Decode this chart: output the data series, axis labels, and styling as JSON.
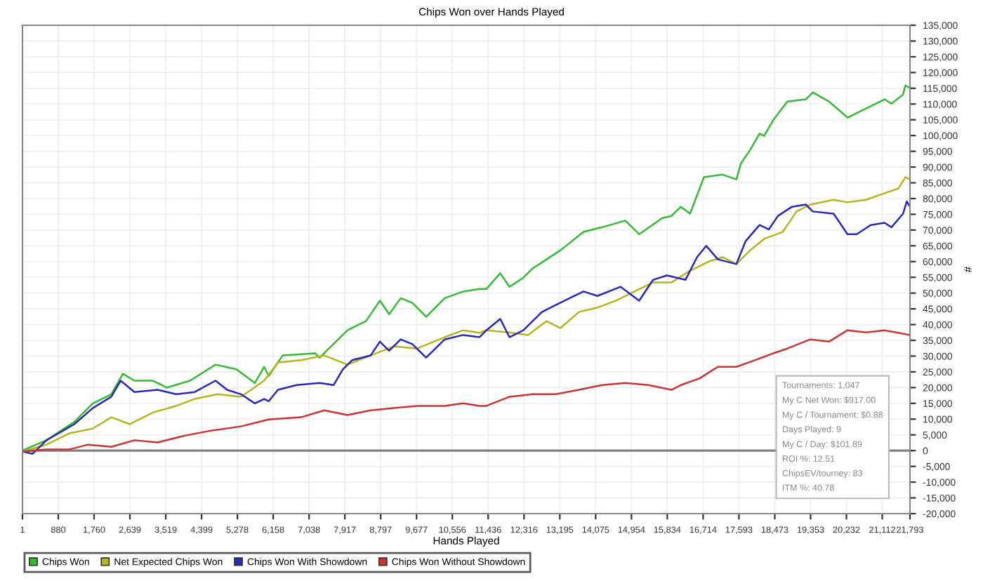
{
  "chart_data": {
    "type": "line",
    "title": "Chips Won over Hands Played",
    "xlabel": "Hands Played",
    "ylabel": "#",
    "xlim": [
      1,
      21793
    ],
    "xticks": [
      1,
      880,
      {
        "value": 1760,
        "label": "1,760"
      },
      {
        "value": 2639,
        "label": "2,639"
      },
      {
        "value": 3519,
        "label": "3,519"
      },
      {
        "value": 4399,
        "label": "4,399"
      },
      {
        "value": 5278,
        "label": "5,278"
      },
      {
        "value": 6158,
        "label": "6,158"
      },
      {
        "value": 7038,
        "label": "7,038"
      },
      {
        "value": 7917,
        "label": "7,917"
      },
      {
        "value": 8797,
        "label": "8,797"
      },
      {
        "value": 9677,
        "label": "9,677"
      },
      {
        "value": 10556,
        "label": "10,556"
      },
      {
        "value": 11436,
        "label": "11,436"
      },
      {
        "value": 12316,
        "label": "12,316"
      },
      {
        "value": 13195,
        "label": "13,195"
      },
      {
        "value": 14075,
        "label": "14,075"
      },
      {
        "value": 14954,
        "label": "14,954"
      },
      {
        "value": 15834,
        "label": "15,834"
      },
      {
        "value": 16714,
        "label": "16,714"
      },
      {
        "value": 17593,
        "label": "17,593"
      },
      {
        "value": 18473,
        "label": "18,473"
      },
      {
        "value": 19353,
        "label": "19,353"
      },
      {
        "value": 20232,
        "label": "20,232"
      },
      {
        "value": 21112,
        "label": "21,112"
      },
      {
        "value": 21793,
        "label": "21,793"
      }
    ],
    "ylim": [
      -20000,
      135000
    ],
    "yticks": [
      {
        "value": -20000,
        "label": "-20,000"
      },
      {
        "value": -15000,
        "label": "-15,000"
      },
      {
        "value": -10000,
        "label": "-10,000"
      },
      {
        "value": -5000,
        "label": "-5,000"
      },
      0,
      {
        "value": 5000,
        "label": "5,000"
      },
      {
        "value": 10000,
        "label": "10,000"
      },
      {
        "value": 15000,
        "label": "15,000"
      },
      {
        "value": 20000,
        "label": "20,000"
      },
      {
        "value": 25000,
        "label": "25,000"
      },
      {
        "value": 30000,
        "label": "30,000"
      },
      {
        "value": 35000,
        "label": "35,000"
      },
      {
        "value": 40000,
        "label": "40,000"
      },
      {
        "value": 45000,
        "label": "45,000"
      },
      {
        "value": 50000,
        "label": "50,000"
      },
      {
        "value": 55000,
        "label": "55,000"
      },
      {
        "value": 60000,
        "label": "60,000"
      },
      {
        "value": 65000,
        "label": "65,000"
      },
      {
        "value": 70000,
        "label": "70,000"
      },
      {
        "value": 75000,
        "label": "75,000"
      },
      {
        "value": 80000,
        "label": "80,000"
      },
      {
        "value": 85000,
        "label": "85,000"
      },
      {
        "value": 90000,
        "label": "90,000"
      },
      {
        "value": 95000,
        "label": "95,000"
      },
      {
        "value": 100000,
        "label": "100,000"
      },
      {
        "value": 105000,
        "label": "105,000"
      },
      {
        "value": 110000,
        "label": "110,000"
      },
      {
        "value": 115000,
        "label": "115,000"
      },
      {
        "value": 120000,
        "label": "120,000"
      },
      {
        "value": 125000,
        "label": "125,000"
      },
      {
        "value": 130000,
        "label": "130,000"
      },
      {
        "value": 135000,
        "label": "135,000"
      }
    ],
    "grid": true,
    "legend": "bottom",
    "marker": "none",
    "line_style": "solid",
    "ref_lines": [
      {
        "axis": "y",
        "value": 0,
        "color": "#808080"
      }
    ],
    "annotations": [
      "Tournaments: 1,047",
      "My C Net Won: $917.00",
      "My C / Tournament: $0.88",
      "Days Played: 9",
      "My C / Day: $101.89",
      "ROI %: 12.51",
      "ChipsEV/tourney: 83",
      "ITM %: 40.78"
    ],
    "series": [
      {
        "name": "Chips Won",
        "color": "#33bb33",
        "x": [
          1,
          591,
          1272,
          1728,
          2183,
          2467,
          2751,
          3205,
          3547,
          4116,
          4741,
          5252,
          5707,
          5935,
          6049,
          6390,
          7186,
          7299,
          7981,
          8436,
          8777,
          9005,
          9289,
          9574,
          9914,
          10369,
          10824,
          11221,
          11391,
          11732,
          11959,
          12300,
          12528,
          12869,
          13210,
          13778,
          14233,
          14802,
          15143,
          15711,
          15939,
          16166,
          16393,
          16734,
          17189,
          17530,
          17644,
          17871,
          18099,
          18212,
          18440,
          18781,
          19236,
          19406,
          19804,
          20259,
          20714,
          21168,
          21339,
          21623,
          21680,
          21793
        ],
        "values": [
          0,
          3300,
          9100,
          15000,
          17900,
          24400,
          22200,
          22200,
          20000,
          22200,
          27300,
          25800,
          21500,
          26600,
          23700,
          30200,
          30900,
          29500,
          38200,
          41100,
          47600,
          43300,
          48400,
          46900,
          42500,
          48400,
          50500,
          51300,
          51300,
          56300,
          52000,
          54900,
          57800,
          60700,
          63600,
          69400,
          70900,
          73000,
          68700,
          73800,
          74500,
          77400,
          75200,
          86800,
          87600,
          86100,
          91200,
          95500,
          100600,
          99900,
          105000,
          110800,
          111500,
          113700,
          110800,
          105700,
          108600,
          111500,
          110100,
          113000,
          115900,
          115100
        ]
      },
      {
        "name": "Net Expected Chips Won",
        "color": "#b5b520",
        "x": [
          1,
          591,
          1159,
          1728,
          2182,
          2637,
          3206,
          3774,
          4229,
          4797,
          5366,
          5934,
          6275,
          6844,
          7413,
          7981,
          8549,
          9118,
          9686,
          10368,
          10823,
          11221,
          11391,
          11959,
          12414,
          12869,
          13210,
          13664,
          14119,
          14574,
          15029,
          15484,
          15939,
          16393,
          16848,
          17189,
          17530,
          17871,
          18212,
          18667,
          19008,
          19349,
          19918,
          20259,
          20714,
          21168,
          21509,
          21680,
          21793
        ],
        "values": [
          -300,
          1900,
          5500,
          7000,
          10600,
          8400,
          12100,
          14200,
          16400,
          17900,
          17100,
          22200,
          28000,
          28700,
          30200,
          27300,
          30200,
          33100,
          32400,
          36000,
          38200,
          37400,
          38200,
          37500,
          36700,
          41100,
          38900,
          44000,
          45400,
          47600,
          50500,
          53400,
          53400,
          57100,
          60000,
          61400,
          59200,
          63600,
          67200,
          69400,
          75900,
          78100,
          79600,
          78800,
          79600,
          81700,
          83200,
          86800,
          86100
        ]
      },
      {
        "name": "Chips Won With Showdown",
        "color": "#2828bb",
        "x": [
          1,
          250,
          591,
          1273,
          1728,
          2182,
          2410,
          2751,
          3319,
          3774,
          4229,
          4741,
          5025,
          5366,
          5707,
          5934,
          6048,
          6275,
          6730,
          7299,
          7640,
          7867,
          8095,
          8549,
          8777,
          9004,
          9288,
          9572,
          9913,
          10368,
          10823,
          11221,
          11391,
          11732,
          11959,
          12300,
          12528,
          12755,
          13096,
          13437,
          13778,
          14119,
          14688,
          15143,
          15484,
          15825,
          16280,
          16564,
          16791,
          17076,
          17530,
          17758,
          18099,
          18326,
          18553,
          18895,
          19236,
          19406,
          19918,
          20259,
          20486,
          20827,
          21168,
          21339,
          21623,
          21714,
          21793
        ],
        "values": [
          -300,
          -1000,
          3300,
          8400,
          13500,
          17100,
          22200,
          18600,
          19300,
          17900,
          18600,
          22200,
          19300,
          17900,
          15000,
          16400,
          15700,
          19300,
          20800,
          21500,
          20800,
          25800,
          28700,
          30200,
          34600,
          31700,
          35300,
          33800,
          29500,
          35300,
          36700,
          36000,
          38200,
          41800,
          36000,
          38200,
          41100,
          44000,
          46200,
          48400,
          50500,
          49100,
          52000,
          47600,
          54200,
          55600,
          54200,
          61400,
          65000,
          60700,
          59200,
          66500,
          71600,
          70200,
          74500,
          77400,
          78100,
          75900,
          75200,
          68700,
          68700,
          71600,
          72300,
          70900,
          75200,
          79100,
          77400
        ]
      },
      {
        "name": "Chips Won Without Showdown",
        "color": "#cc3333",
        "x": [
          1,
          591,
          1159,
          1614,
          2182,
          2751,
          3319,
          4001,
          4570,
          5366,
          6048,
          6844,
          7413,
          7981,
          8549,
          9118,
          9686,
          10368,
          10823,
          11221,
          11391,
          11959,
          12528,
          13096,
          13664,
          14233,
          14802,
          15370,
          15939,
          16166,
          16621,
          17076,
          17530,
          17985,
          18440,
          18781,
          19349,
          19804,
          20259,
          20714,
          21168,
          21793
        ],
        "values": [
          -300,
          400,
          400,
          1900,
          1200,
          3300,
          2600,
          4800,
          6200,
          7700,
          9900,
          10600,
          12800,
          11300,
          12800,
          13500,
          14200,
          14200,
          15000,
          14200,
          14200,
          17100,
          17900,
          17900,
          19300,
          20800,
          21500,
          20800,
          19300,
          20800,
          22900,
          26600,
          26600,
          28700,
          30900,
          32400,
          35300,
          34600,
          38200,
          37500,
          38200,
          36700
        ]
      }
    ]
  }
}
